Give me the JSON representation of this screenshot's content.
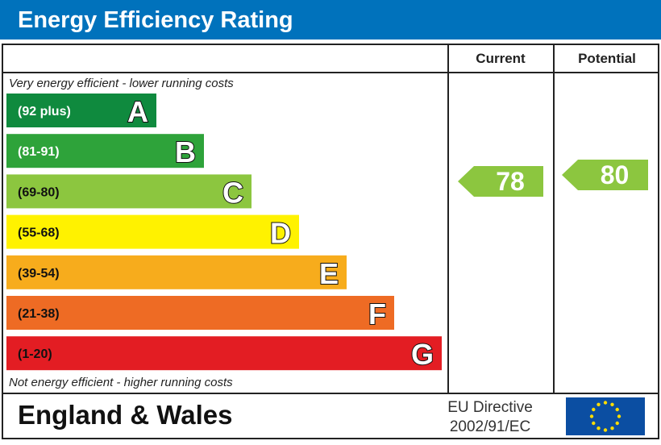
{
  "chart_data": {
    "type": "bar",
    "title": "Energy Efficiency Rating",
    "top_note": "Very energy efficient - lower running costs",
    "bottom_note": "Not energy efficient - higher running costs",
    "columns": [
      "Current",
      "Potential"
    ],
    "bands": [
      {
        "letter": "A",
        "range": "(92 plus)",
        "color": "#0f8a3e"
      },
      {
        "letter": "B",
        "range": "(81-91)",
        "color": "#2ea33a"
      },
      {
        "letter": "C",
        "range": "(69-80)",
        "color": "#8cc63f"
      },
      {
        "letter": "D",
        "range": "(55-68)",
        "color": "#fff200"
      },
      {
        "letter": "E",
        "range": "(39-54)",
        "color": "#f7ac1c"
      },
      {
        "letter": "F",
        "range": "(21-38)",
        "color": "#ee6b24"
      },
      {
        "letter": "G",
        "range": "(1-20)",
        "color": "#e31d23"
      }
    ],
    "current": {
      "value": 78,
      "band": "C",
      "color": "#8cc63f"
    },
    "potential": {
      "value": 80,
      "band": "C",
      "color": "#8cc63f"
    }
  },
  "footer": {
    "region": "England & Wales",
    "directive_line1": "EU Directive",
    "directive_line2": "2002/91/EC",
    "flag_icon": "eu-flag-icon"
  },
  "colors": {
    "header": "#0072bc",
    "flag": "#0b4ea2",
    "stars": "#ffdd00"
  }
}
